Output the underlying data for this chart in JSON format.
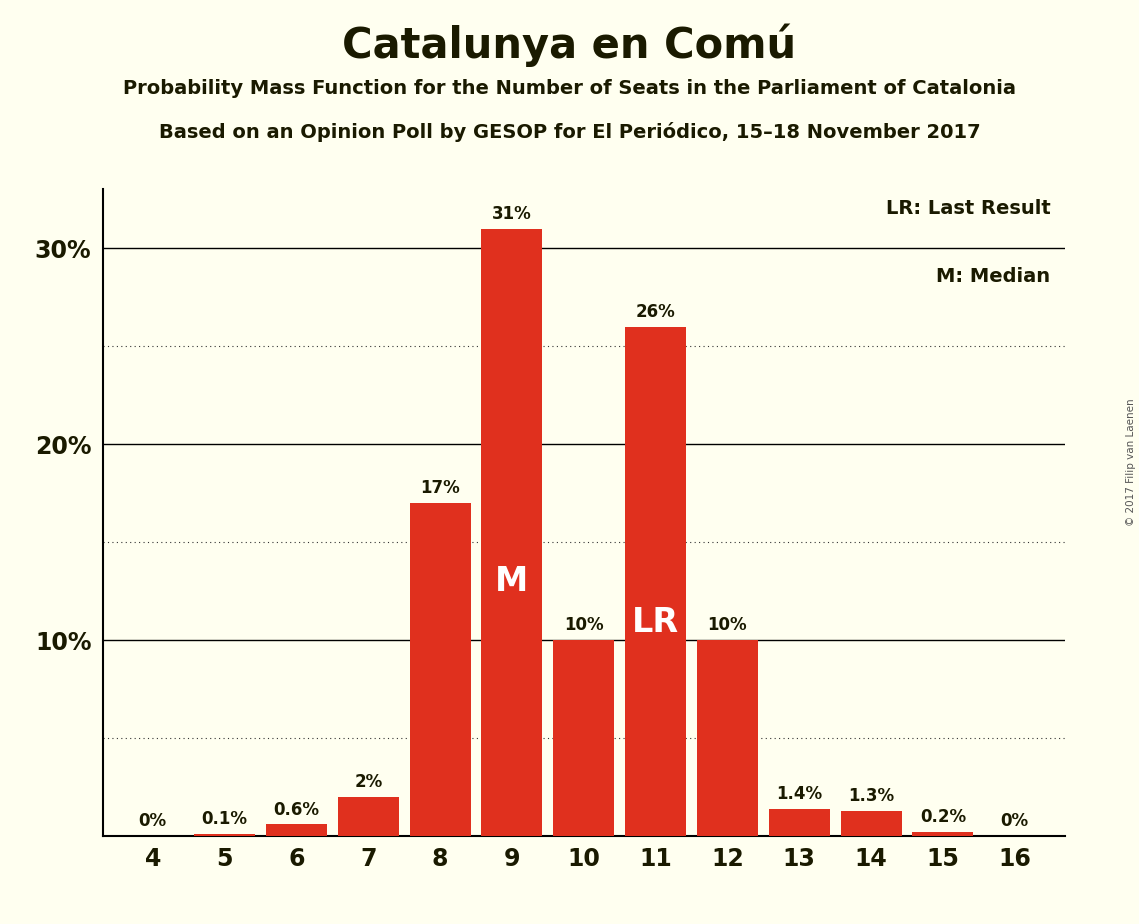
{
  "title": "Catalunya en Comú",
  "subtitle1": "Probability Mass Function for the Number of Seats in the Parliament of Catalonia",
  "subtitle2": "Based on an Opinion Poll by GESOP for El Periódico, 15–18 November 2017",
  "copyright": "© 2017 Filip van Laenen",
  "seats": [
    4,
    5,
    6,
    7,
    8,
    9,
    10,
    11,
    12,
    13,
    14,
    15,
    16
  ],
  "probabilities": [
    0.0,
    0.1,
    0.6,
    2.0,
    17.0,
    31.0,
    10.0,
    26.0,
    10.0,
    1.4,
    1.3,
    0.2,
    0.0
  ],
  "labels": [
    "0%",
    "0.1%",
    "0.6%",
    "2%",
    "17%",
    "31%",
    "10%",
    "26%",
    "10%",
    "1.4%",
    "1.3%",
    "0.2%",
    "0%"
  ],
  "bar_color": "#E0301E",
  "background_color": "#FFFFF0",
  "title_color": "#1a1a00",
  "median_seat": 9,
  "lr_seat": 11,
  "ylim": [
    0,
    33
  ],
  "ytick_positions": [
    10,
    20,
    30
  ],
  "ytick_labels": [
    "10%",
    "20%",
    "30%"
  ],
  "major_gridlines": [
    10,
    20,
    30
  ],
  "minor_gridlines": [
    5,
    15,
    25
  ],
  "legend_lr": "LR: Last Result",
  "legend_m": "M: Median"
}
